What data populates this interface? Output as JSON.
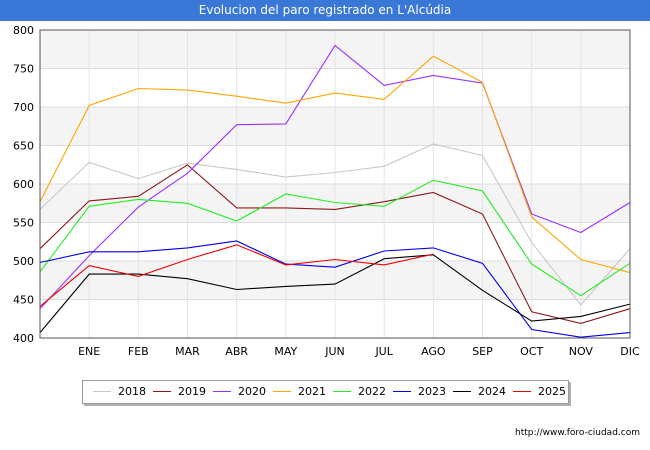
{
  "title": "Evolucion del paro registrado en L'Alcúdia",
  "footer": "http://www.foro-ciudad.com",
  "chart_data": {
    "type": "line",
    "title": "Evolucion del paro registrado en L'Alcúdia",
    "xlabel": "",
    "ylabel": "",
    "categories": [
      "",
      "ENE",
      "FEB",
      "MAR",
      "ABR",
      "MAY",
      "JUN",
      "JUL",
      "AGO",
      "SEP",
      "OCT",
      "NOV",
      "DIC"
    ],
    "ylim": [
      400,
      800
    ],
    "yticks": [
      400,
      450,
      500,
      550,
      600,
      650,
      700,
      750,
      800
    ],
    "grid": true,
    "legend_position": "bottom",
    "series": [
      {
        "name": "2018",
        "color": "#c8c8c8",
        "values": [
          567,
          628,
          607,
          627,
          619,
          609,
          615,
          623,
          652,
          637,
          524,
          443,
          516
        ]
      },
      {
        "name": "2019",
        "color": "#8b1a1a",
        "values": [
          516,
          578,
          584,
          625,
          569,
          569,
          567,
          577,
          589,
          561,
          434,
          419,
          438
        ]
      },
      {
        "name": "2020",
        "color": "#9b30ff",
        "values": [
          438,
          507,
          570,
          614,
          677,
          678,
          780,
          728,
          741,
          731,
          561,
          537,
          576
        ]
      },
      {
        "name": "2021",
        "color": "#ffa500",
        "values": [
          577,
          702,
          724,
          722,
          714,
          705,
          718,
          710,
          766,
          732,
          557,
          502,
          485
        ]
      },
      {
        "name": "2022",
        "color": "#22ee22",
        "values": [
          486,
          571,
          580,
          575,
          552,
          587,
          576,
          571,
          605,
          591,
          496,
          455,
          497
        ]
      },
      {
        "name": "2023",
        "color": "#0000ee",
        "values": [
          498,
          512,
          512,
          517,
          526,
          496,
          492,
          513,
          517,
          497,
          411,
          401,
          407
        ]
      },
      {
        "name": "2024",
        "color": "#000000",
        "values": [
          407,
          483,
          483,
          477,
          463,
          467,
          470,
          503,
          508,
          462,
          422,
          428,
          444
        ]
      },
      {
        "name": "2025",
        "color": "#ee0000",
        "values": [
          441,
          494,
          480,
          502,
          521,
          495,
          502,
          495,
          509,
          null,
          null,
          null,
          null
        ]
      }
    ]
  }
}
